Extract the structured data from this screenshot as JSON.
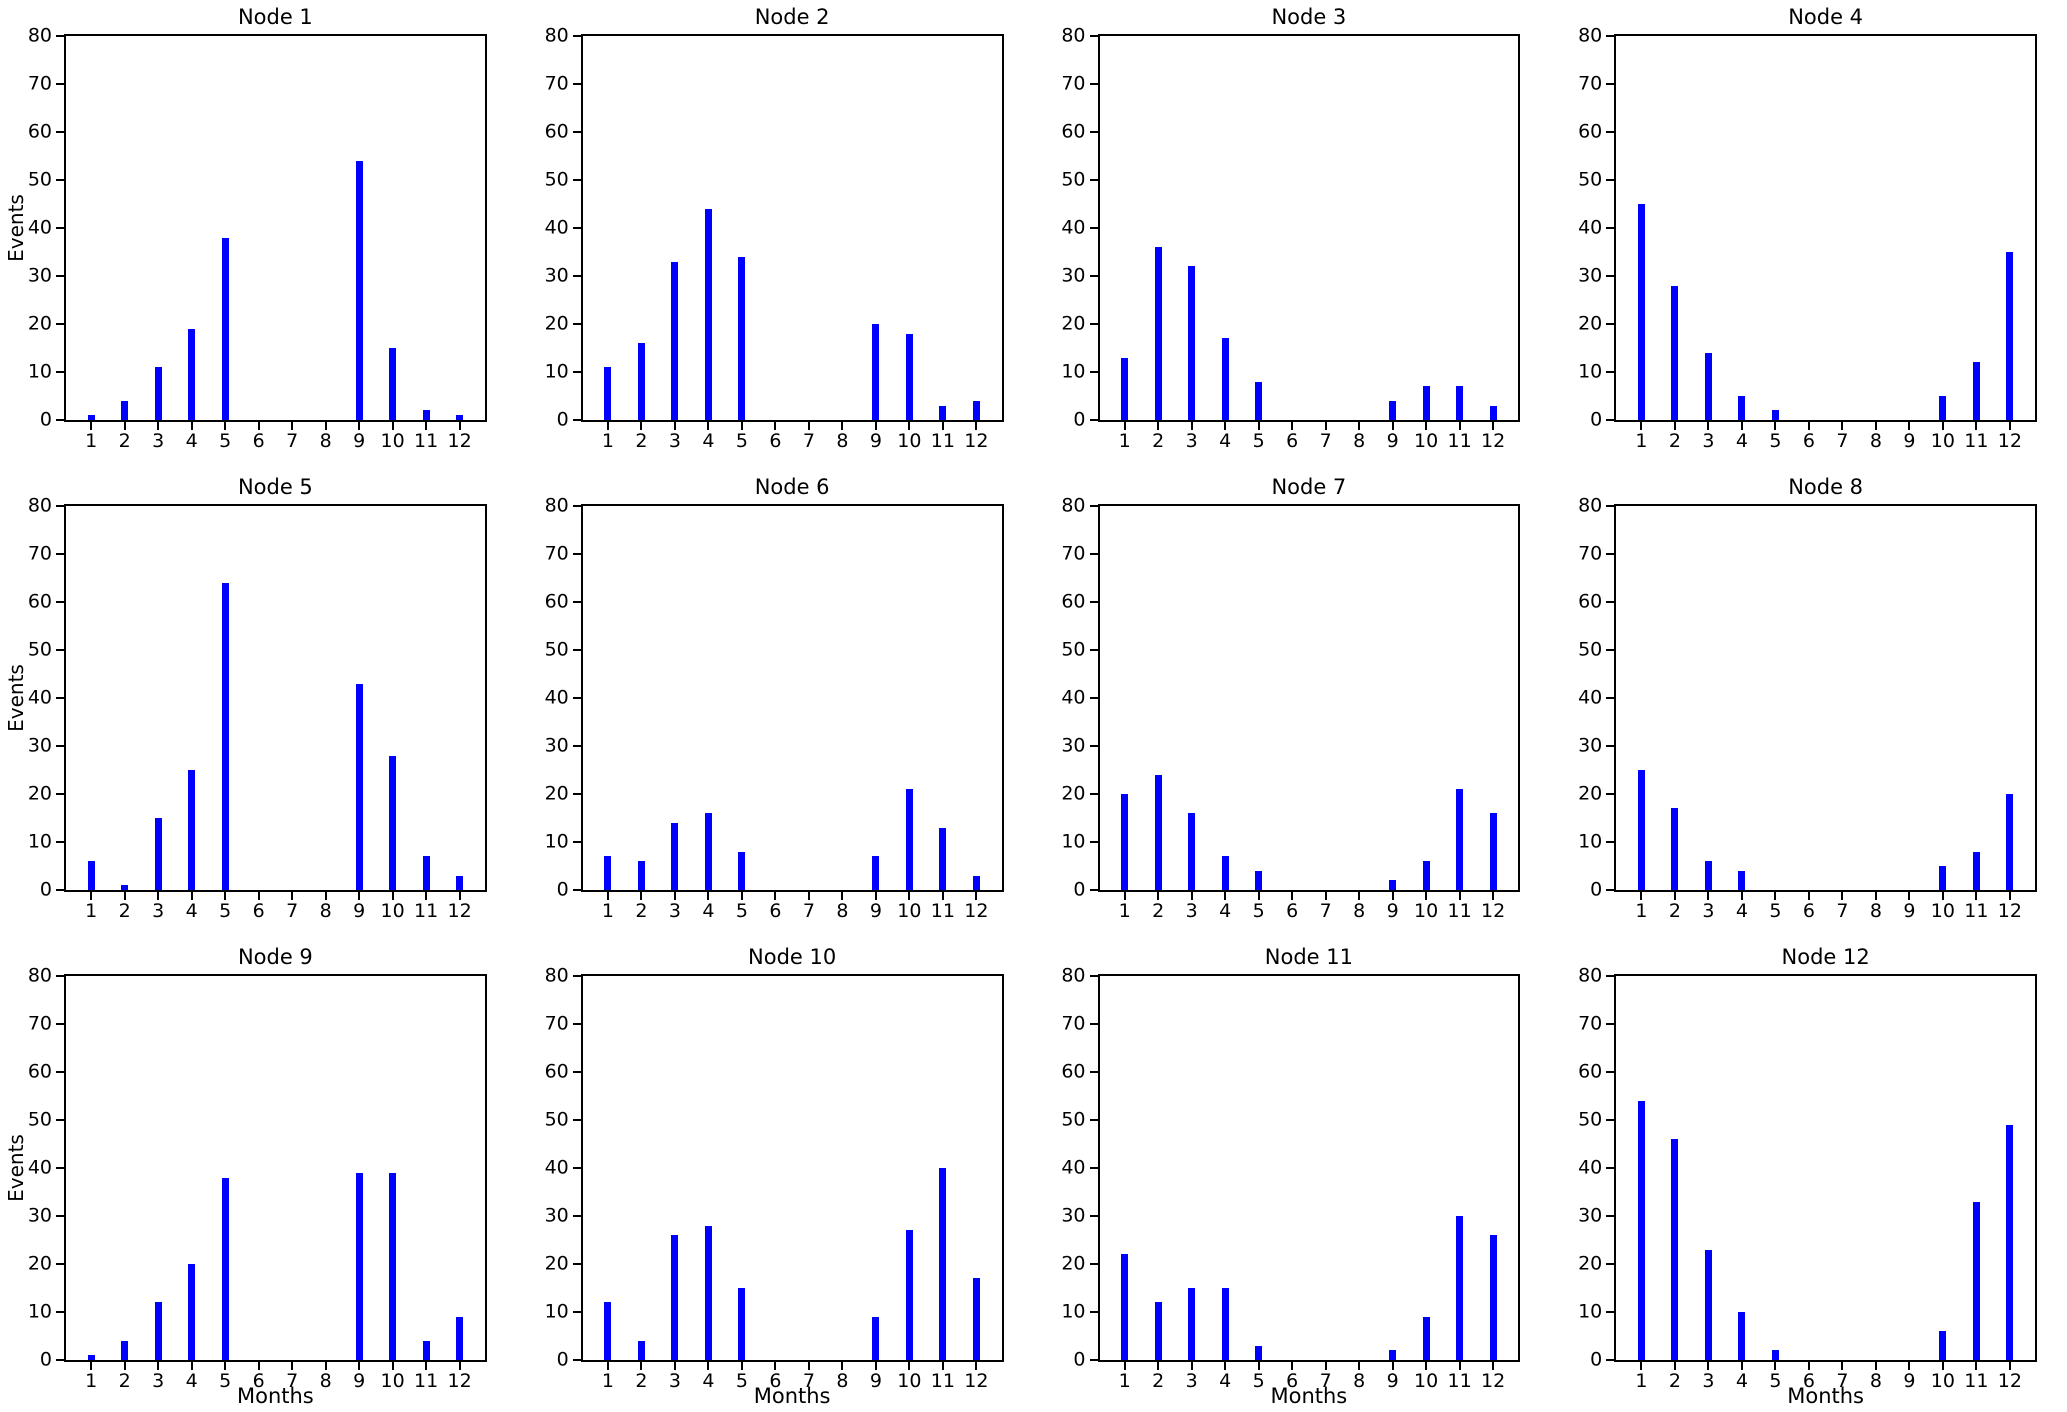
{
  "figure": {
    "ylabel": "Events",
    "xlabel": "Months",
    "bar_color": "#0000ff",
    "categories": [
      "1",
      "2",
      "3",
      "4",
      "5",
      "6",
      "7",
      "8",
      "9",
      "10",
      "11",
      "12"
    ],
    "ytick_labels": [
      "0",
      "10",
      "20",
      "30",
      "40",
      "50",
      "60",
      "70",
      "80"
    ],
    "ylim": [
      0,
      80
    ],
    "grid": "off",
    "legend": "none"
  },
  "chart_data": [
    {
      "type": "bar",
      "title": "Node 1",
      "categories": [
        "1",
        "2",
        "3",
        "4",
        "5",
        "6",
        "7",
        "8",
        "9",
        "10",
        "11",
        "12"
      ],
      "values": [
        1,
        4,
        11,
        19,
        38,
        0,
        0,
        0,
        54,
        15,
        2,
        1
      ],
      "ylim": [
        0,
        80
      ],
      "xlabel": "",
      "ylabel": "Events"
    },
    {
      "type": "bar",
      "title": "Node 2",
      "categories": [
        "1",
        "2",
        "3",
        "4",
        "5",
        "6",
        "7",
        "8",
        "9",
        "10",
        "11",
        "12"
      ],
      "values": [
        11,
        16,
        33,
        44,
        34,
        0,
        0,
        0,
        20,
        18,
        3,
        4
      ],
      "ylim": [
        0,
        80
      ],
      "xlabel": "",
      "ylabel": ""
    },
    {
      "type": "bar",
      "title": "Node 3",
      "categories": [
        "1",
        "2",
        "3",
        "4",
        "5",
        "6",
        "7",
        "8",
        "9",
        "10",
        "11",
        "12"
      ],
      "values": [
        13,
        36,
        32,
        17,
        8,
        0,
        0,
        0,
        4,
        7,
        7,
        3
      ],
      "ylim": [
        0,
        80
      ],
      "xlabel": "",
      "ylabel": ""
    },
    {
      "type": "bar",
      "title": "Node 4",
      "categories": [
        "1",
        "2",
        "3",
        "4",
        "5",
        "6",
        "7",
        "8",
        "9",
        "10",
        "11",
        "12"
      ],
      "values": [
        45,
        28,
        14,
        5,
        2,
        0,
        0,
        0,
        0,
        5,
        12,
        35
      ],
      "ylim": [
        0,
        80
      ],
      "xlabel": "",
      "ylabel": ""
    },
    {
      "type": "bar",
      "title": "Node 5",
      "categories": [
        "1",
        "2",
        "3",
        "4",
        "5",
        "6",
        "7",
        "8",
        "9",
        "10",
        "11",
        "12"
      ],
      "values": [
        6,
        1,
        15,
        25,
        64,
        0,
        0,
        0,
        43,
        28,
        7,
        3
      ],
      "ylim": [
        0,
        80
      ],
      "xlabel": "",
      "ylabel": "Events"
    },
    {
      "type": "bar",
      "title": "Node 6",
      "categories": [
        "1",
        "2",
        "3",
        "4",
        "5",
        "6",
        "7",
        "8",
        "9",
        "10",
        "11",
        "12"
      ],
      "values": [
        7,
        6,
        14,
        16,
        8,
        0,
        0,
        0,
        7,
        21,
        13,
        3
      ],
      "ylim": [
        0,
        80
      ],
      "xlabel": "",
      "ylabel": ""
    },
    {
      "type": "bar",
      "title": "Node 7",
      "categories": [
        "1",
        "2",
        "3",
        "4",
        "5",
        "6",
        "7",
        "8",
        "9",
        "10",
        "11",
        "12"
      ],
      "values": [
        20,
        24,
        16,
        7,
        4,
        0,
        0,
        0,
        2,
        6,
        21,
        16
      ],
      "ylim": [
        0,
        80
      ],
      "xlabel": "",
      "ylabel": ""
    },
    {
      "type": "bar",
      "title": "Node 8",
      "categories": [
        "1",
        "2",
        "3",
        "4",
        "5",
        "6",
        "7",
        "8",
        "9",
        "10",
        "11",
        "12"
      ],
      "values": [
        25,
        17,
        6,
        4,
        0,
        0,
        0,
        0,
        0,
        5,
        8,
        20
      ],
      "ylim": [
        0,
        80
      ],
      "xlabel": "",
      "ylabel": ""
    },
    {
      "type": "bar",
      "title": "Node 9",
      "categories": [
        "1",
        "2",
        "3",
        "4",
        "5",
        "6",
        "7",
        "8",
        "9",
        "10",
        "11",
        "12"
      ],
      "values": [
        1,
        4,
        12,
        20,
        38,
        0,
        0,
        0,
        39,
        39,
        4,
        9
      ],
      "ylim": [
        0,
        80
      ],
      "xlabel": "Months",
      "ylabel": "Events"
    },
    {
      "type": "bar",
      "title": "Node 10",
      "categories": [
        "1",
        "2",
        "3",
        "4",
        "5",
        "6",
        "7",
        "8",
        "9",
        "10",
        "11",
        "12"
      ],
      "values": [
        12,
        4,
        26,
        28,
        15,
        0,
        0,
        0,
        9,
        27,
        40,
        17
      ],
      "ylim": [
        0,
        80
      ],
      "xlabel": "Months",
      "ylabel": ""
    },
    {
      "type": "bar",
      "title": "Node 11",
      "categories": [
        "1",
        "2",
        "3",
        "4",
        "5",
        "6",
        "7",
        "8",
        "9",
        "10",
        "11",
        "12"
      ],
      "values": [
        22,
        12,
        15,
        15,
        3,
        0,
        0,
        0,
        2,
        9,
        30,
        26
      ],
      "ylim": [
        0,
        80
      ],
      "xlabel": "Months",
      "ylabel": ""
    },
    {
      "type": "bar",
      "title": "Node 12",
      "categories": [
        "1",
        "2",
        "3",
        "4",
        "5",
        "6",
        "7",
        "8",
        "9",
        "10",
        "11",
        "12"
      ],
      "values": [
        54,
        46,
        23,
        10,
        2,
        0,
        0,
        0,
        0,
        6,
        33,
        49
      ],
      "ylim": [
        0,
        80
      ],
      "xlabel": "Months",
      "ylabel": ""
    }
  ]
}
